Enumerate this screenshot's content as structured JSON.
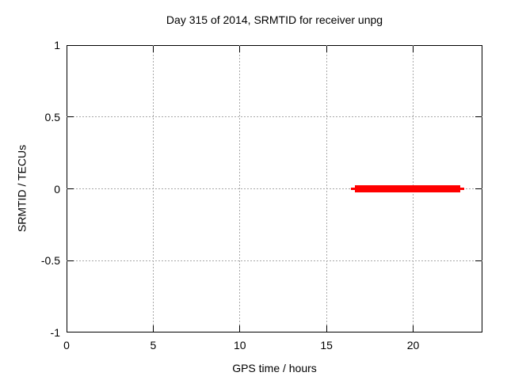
{
  "window": {
    "background": "#ffffff"
  },
  "colors": {
    "axis": "#000000",
    "text": "#000000",
    "grid": "#a8a8a8",
    "series_red": "#ff0000",
    "background": "#ffffff"
  },
  "chart_data": {
    "type": "line",
    "title": "Day 315 of 2014, SRMTID for receiver unpg",
    "xlabel": "GPS time / hours",
    "ylabel": "SRMTID / TECUs",
    "xlim": [
      0,
      24
    ],
    "ylim": [
      -1,
      1
    ],
    "xticks": {
      "values": [
        0,
        5,
        10,
        15,
        20
      ],
      "labels": [
        "0",
        "5",
        "10",
        "15",
        "20"
      ]
    },
    "yticks": {
      "values": [
        -1,
        -0.5,
        0,
        0.5,
        1
      ],
      "labels": [
        "-1",
        "-0.5",
        "0",
        "0.5",
        "1"
      ]
    },
    "grid": {
      "x_values": [
        5,
        10,
        15,
        20
      ],
      "y_values": [
        -0.5,
        0,
        0.5
      ],
      "style": "dashed",
      "color": "#a8a8a8"
    },
    "legend": "none",
    "series": [
      {
        "name": "SRMTID",
        "color": "#ff0000",
        "y_value": 0,
        "x_start_hours": 16.4,
        "x_end_hours": 22.95,
        "points": [
          [
            16.4,
            0
          ],
          [
            22.95,
            0
          ]
        ],
        "render_segments": [
          {
            "x1": 16.4,
            "x2": 16.65,
            "lw": 3
          },
          {
            "x1": 16.65,
            "x2": 22.7,
            "lw": 9
          },
          {
            "x1": 22.7,
            "x2": 22.95,
            "lw": 3
          }
        ]
      }
    ]
  }
}
